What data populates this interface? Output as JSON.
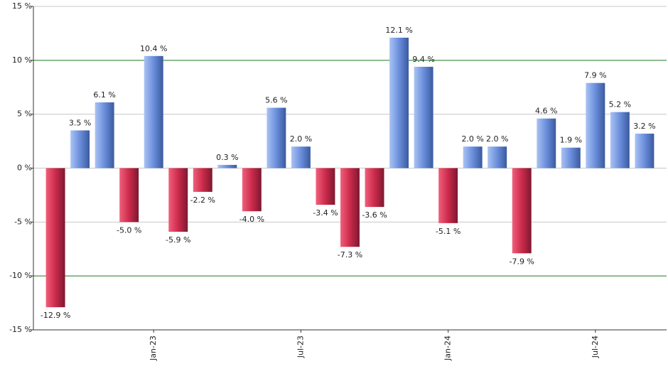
{
  "chart_data": {
    "type": "bar",
    "categories": [
      null,
      null,
      null,
      null,
      "Jan-23",
      null,
      null,
      null,
      null,
      null,
      "Jul-23",
      null,
      null,
      null,
      null,
      null,
      "Jan-24",
      null,
      null,
      null,
      null,
      null,
      "Jul-24",
      null,
      null
    ],
    "values": [
      -12.9,
      3.5,
      6.1,
      -5.0,
      10.4,
      -5.9,
      -2.2,
      0.3,
      -4.0,
      5.6,
      2.0,
      -3.4,
      -7.3,
      -3.6,
      12.1,
      9.4,
      -5.1,
      2.0,
      2.0,
      -7.9,
      4.6,
      1.9,
      7.9,
      5.2,
      3.2
    ],
    "value_labels": [
      "-12.9 %",
      "3.5 %",
      "6.1 %",
      "-5.0 %",
      "10.4 %",
      "-5.9 %",
      "-2.2 %",
      "0.3 %",
      "-4.0 %",
      "5.6 %",
      "2.0 %",
      "-3.4 %",
      "-7.3 %",
      "-3.6 %",
      "12.1 %",
      "9.4 %",
      "-5.1 %",
      "2.0 %",
      "2.0 %",
      "-7.9 %",
      "4.6 %",
      "1.9 %",
      "7.9 %",
      "5.2 %",
      "3.2 %"
    ],
    "positive_colors": [
      "#a9c3f4",
      "#6a8edb",
      "#3a5a9f"
    ],
    "negative_colors": [
      "#f0607a",
      "#cc2a4b",
      "#7d1830"
    ],
    "ylim": [
      -15,
      15
    ],
    "yticks": [
      {
        "value": -15,
        "label": "-15 %"
      },
      {
        "value": -10,
        "label": "-10 %"
      },
      {
        "value": -5,
        "label": "-5 %"
      },
      {
        "value": 0,
        "label": "0 %"
      },
      {
        "value": 5,
        "label": "5 %"
      },
      {
        "value": 10,
        "label": "10 %"
      },
      {
        "value": 15,
        "label": "15 %"
      }
    ],
    "grid": true,
    "grid_color": "#c8c8c8",
    "reference_lines": [
      -10,
      10
    ],
    "reference_color": "#1a7a1a"
  }
}
